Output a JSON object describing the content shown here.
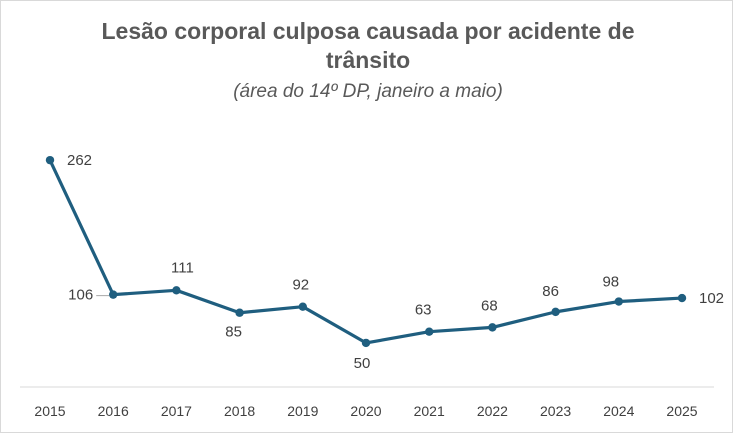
{
  "chart": {
    "title": "Lesão corporal culposa causada por acidente de trânsito",
    "subtitle": "(área do 14º DP, janeiro a maio)"
  },
  "colors": {
    "series_line": "#1f5e7f",
    "axis_line": "#d9d9d9",
    "title_text": "#595959",
    "label_text": "#404040"
  },
  "chart_data": {
    "type": "line",
    "categories": [
      "2015",
      "2016",
      "2017",
      "2018",
      "2019",
      "2020",
      "2021",
      "2022",
      "2023",
      "2024",
      "2025"
    ],
    "series": [
      {
        "values": [
          262,
          106,
          111,
          85,
          92,
          50,
          63,
          68,
          86,
          98,
          102
        ]
      }
    ],
    "title": "Lesão corporal culposa causada por acidente de trânsito",
    "subtitle": "(área do 14º DP, janeiro a maio)",
    "ylim": [
      0,
      262
    ],
    "grid": false,
    "legend": "none",
    "data_labels": true,
    "markers": true
  }
}
